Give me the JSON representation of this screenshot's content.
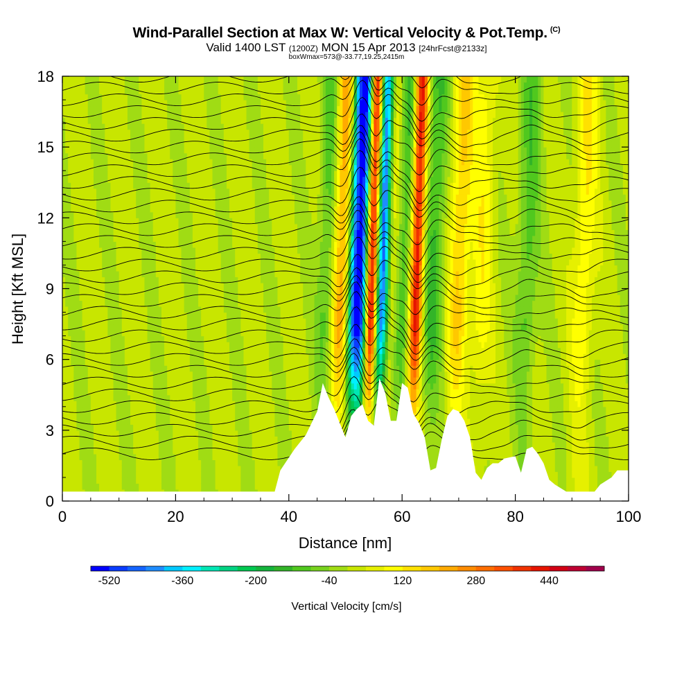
{
  "header": {
    "title": "Wind-Parallel Section at Max W: Vertical Velocity & Pot.Temp.",
    "copyright": "(C)",
    "valid_prefix": "Valid 1400 LST",
    "valid_z": "(1200Z)",
    "valid_date": "MON 15 Apr 2013",
    "forecast": "[24hrFcst@2133z]",
    "box_info": "boxWmax=573@-33.77,19.25,2415m"
  },
  "chart_data": {
    "type": "heatmap",
    "xlabel": "Distance [nm]",
    "ylabel": "Height [Kft MSL]",
    "xlim": [
      0,
      100
    ],
    "ylim": [
      0,
      18
    ],
    "xticks": [
      "0",
      "20",
      "40",
      "60",
      "80",
      "100"
    ],
    "yticks": [
      "0",
      "3",
      "6",
      "9",
      "12",
      "15",
      "18"
    ],
    "colorbar": {
      "title": "Vertical Velocity [cm/s]",
      "labels": [
        "-520",
        "-360",
        "-200",
        "-40",
        "120",
        "280",
        "440"
      ],
      "levels": [
        -560,
        -520,
        -480,
        -440,
        -400,
        -360,
        -320,
        -280,
        -240,
        -200,
        -160,
        -120,
        -80,
        -40,
        0,
        40,
        80,
        120,
        160,
        200,
        240,
        280,
        320,
        360,
        400,
        440,
        480,
        520,
        560
      ],
      "colors": [
        "#0000ff",
        "#0a3cff",
        "#1464ff",
        "#1e8cff",
        "#00c8ff",
        "#00f0ff",
        "#00e6b4",
        "#00d282",
        "#00c850",
        "#14b43c",
        "#32b428",
        "#50c81e",
        "#78d21e",
        "#a0dc14",
        "#c8e600",
        "#e6f000",
        "#ffff00",
        "#ffe100",
        "#ffc800",
        "#ffaa00",
        "#ff8c00",
        "#ff6e00",
        "#ff5000",
        "#f03200",
        "#e61400",
        "#d20014",
        "#be0032",
        "#a0004b"
      ]
    },
    "velocity_bands": [
      {
        "x": 47,
        "w": -150
      },
      {
        "x": 49,
        "w": 250
      },
      {
        "x": 51.5,
        "w": -430
      },
      {
        "x": 53,
        "w": -480
      },
      {
        "x": 54.5,
        "w": 470
      },
      {
        "x": 56.5,
        "w": -520
      },
      {
        "x": 58,
        "w": 130
      },
      {
        "x": 60,
        "w": -160
      },
      {
        "x": 62.5,
        "w": 440
      },
      {
        "x": 65.5,
        "w": -140
      },
      {
        "x": 70,
        "w": 160
      },
      {
        "x": 74,
        "w": 90
      },
      {
        "x": 82,
        "w": -110
      },
      {
        "x": 92,
        "w": 110
      }
    ],
    "terrain": [
      [
        0,
        0.4
      ],
      [
        37.5,
        0.4
      ],
      [
        38.5,
        1.3
      ],
      [
        41,
        2.2
      ],
      [
        43,
        2.8
      ],
      [
        45,
        3.8
      ],
      [
        46,
        5.0
      ],
      [
        47,
        4.4
      ],
      [
        48,
        3.9
      ],
      [
        49,
        3.3
      ],
      [
        50,
        2.7
      ],
      [
        51,
        3.6
      ],
      [
        52,
        3.9
      ],
      [
        53,
        4.1
      ],
      [
        54,
        3.4
      ],
      [
        55,
        3.2
      ],
      [
        56,
        5.2
      ],
      [
        57,
        4.6
      ],
      [
        58,
        3.4
      ],
      [
        59,
        3.4
      ],
      [
        60,
        5.0
      ],
      [
        61,
        4.8
      ],
      [
        62,
        3.7
      ],
      [
        63,
        3.3
      ],
      [
        64,
        2.7
      ],
      [
        65,
        1.3
      ],
      [
        66,
        1.4
      ],
      [
        67,
        2.6
      ],
      [
        68,
        3.6
      ],
      [
        69,
        3.9
      ],
      [
        70,
        3.8
      ],
      [
        71,
        3.4
      ],
      [
        72,
        2.7
      ],
      [
        73,
        1.2
      ],
      [
        74,
        0.9
      ],
      [
        75,
        1.4
      ],
      [
        76,
        1.6
      ],
      [
        77,
        1.6
      ],
      [
        78,
        1.8
      ],
      [
        80,
        1.9
      ],
      [
        81,
        1.2
      ],
      [
        82,
        2.2
      ],
      [
        83,
        2.3
      ],
      [
        84,
        2.0
      ],
      [
        85,
        1.6
      ],
      [
        86,
        0.9
      ],
      [
        87,
        0.7
      ],
      [
        89,
        0.4
      ],
      [
        94,
        0.4
      ],
      [
        95,
        0.7
      ],
      [
        97,
        1.0
      ],
      [
        98,
        1.3
      ],
      [
        100,
        1.3
      ]
    ]
  }
}
